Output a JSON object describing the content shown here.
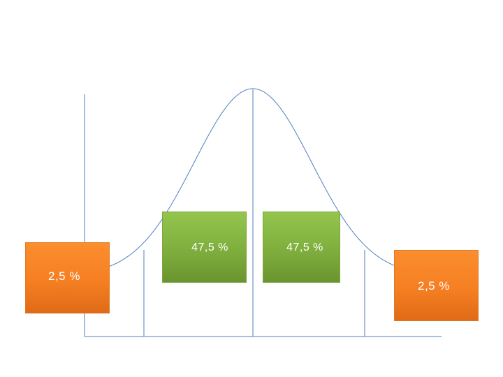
{
  "labels": {
    "left_tail": "2,5 %",
    "left_center": "47,5 %",
    "right_center": "47,5 %",
    "right_tail": "2,5 %"
  },
  "colors": {
    "line": "#4f7fbf",
    "tail_box": "#f58220",
    "center_box": "#7aab3c",
    "label_text": "#ffffff"
  },
  "distribution": {
    "type": "normal",
    "region_percentages": [
      2.5,
      47.5,
      47.5,
      2.5
    ]
  }
}
